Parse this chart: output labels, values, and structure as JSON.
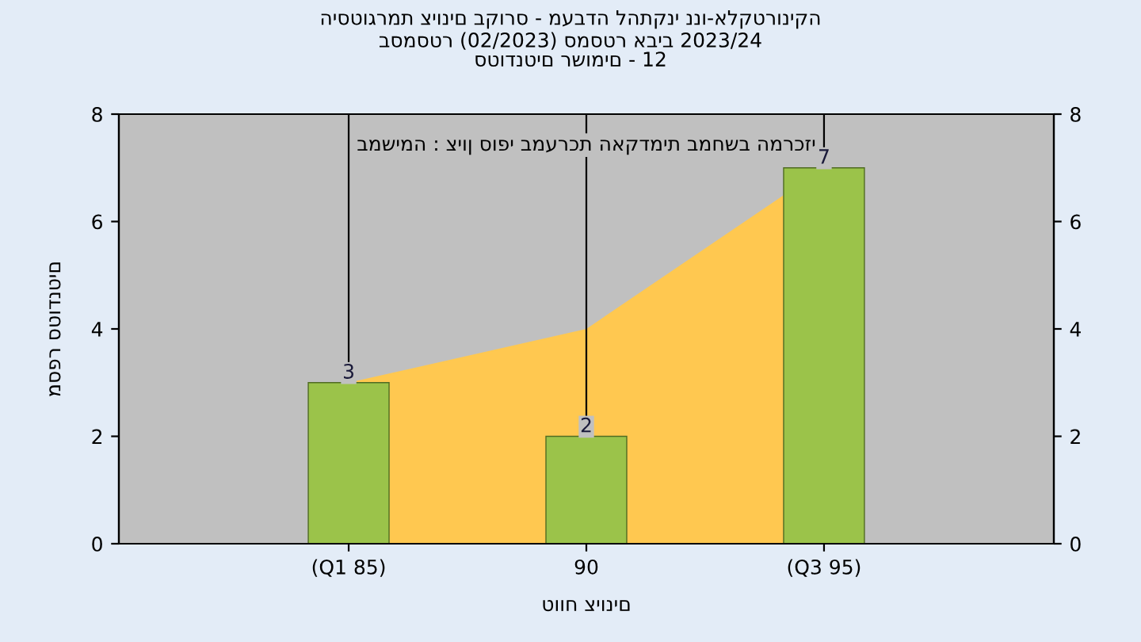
{
  "chart_data": {
    "type": "bar",
    "title": "היסטוגרמת ציונים בקורס - מעבדה להתקני ננו-אלקטרוניקה",
    "subtitle": "בסמסטר (02/2023) סמסטר אביב 2023/24\nסטודנטים רשומים - 12",
    "xlabel": "טווח ציונים",
    "ylabel": "מספר סטודנטים",
    "annotations": [
      "במשימה : ציון סופי במערכת האקדמית במחשב המרכזי"
    ],
    "categories": [
      "(Q1 85)",
      "90",
      "(Q3 95)"
    ],
    "series": [
      {
        "type": "area",
        "color": "#ffc850",
        "values": [
          3,
          4,
          7
        ]
      },
      {
        "color": "#9bc34a",
        "values": [
          3,
          2,
          7
        ],
        "value_labels": [
          "3",
          "2",
          "7"
        ]
      }
    ],
    "ylim": [
      0,
      8
    ],
    "yticks": [
      0,
      2,
      4,
      6,
      8
    ],
    "y2lim": [
      0,
      8
    ],
    "y2ticks": [
      0,
      2,
      4,
      6,
      8
    ],
    "grid": "x",
    "legend": false
  }
}
